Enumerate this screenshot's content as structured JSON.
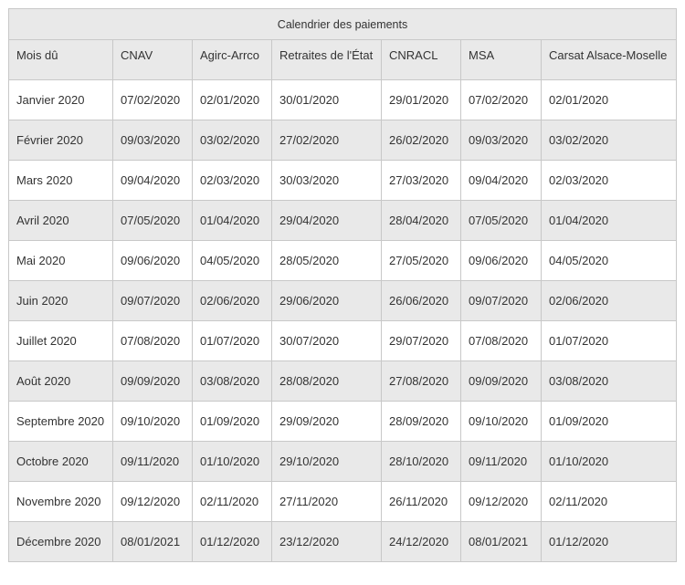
{
  "table": {
    "caption": "Calendrier des paiements",
    "headers": [
      "Mois dû",
      "CNAV",
      "Agirc-Arrco",
      "Retraites de l'État",
      "CNRACL",
      "MSA",
      "Carsat Alsace-Moselle"
    ],
    "rows": [
      [
        "Janvier 2020",
        "07/02/2020",
        "02/01/2020",
        "30/01/2020",
        "29/01/2020",
        "07/02/2020",
        "02/01/2020"
      ],
      [
        "Février 2020",
        "09/03/2020",
        "03/02/2020",
        "27/02/2020",
        "26/02/2020",
        "09/03/2020",
        "03/02/2020"
      ],
      [
        "Mars 2020",
        "09/04/2020",
        "02/03/2020",
        "30/03/2020",
        "27/03/2020",
        "09/04/2020",
        "02/03/2020"
      ],
      [
        "Avril 2020",
        "07/05/2020",
        "01/04/2020",
        "29/04/2020",
        "28/04/2020",
        "07/05/2020",
        "01/04/2020"
      ],
      [
        "Mai 2020",
        "09/06/2020",
        "04/05/2020",
        "28/05/2020",
        "27/05/2020",
        "09/06/2020",
        "04/05/2020"
      ],
      [
        "Juin 2020",
        "09/07/2020",
        "02/06/2020",
        "29/06/2020",
        "26/06/2020",
        "09/07/2020",
        "02/06/2020"
      ],
      [
        "Juillet 2020",
        "07/08/2020",
        "01/07/2020",
        "30/07/2020",
        "29/07/2020",
        "07/08/2020",
        "01/07/2020"
      ],
      [
        "Août 2020",
        "09/09/2020",
        "03/08/2020",
        "28/08/2020",
        "27/08/2020",
        "09/09/2020",
        "03/08/2020"
      ],
      [
        "Septembre 2020",
        "09/10/2020",
        "01/09/2020",
        "29/09/2020",
        "28/09/2020",
        "09/10/2020",
        "01/09/2020"
      ],
      [
        "Octobre 2020",
        "09/11/2020",
        "01/10/2020",
        "29/10/2020",
        "28/10/2020",
        "09/11/2020",
        "01/10/2020"
      ],
      [
        "Novembre 2020",
        "09/12/2020",
        "02/11/2020",
        "27/11/2020",
        "26/11/2020",
        "09/12/2020",
        "02/11/2020"
      ],
      [
        "Décembre 2020",
        "08/01/2021",
        "01/12/2020",
        "23/12/2020",
        "24/12/2020",
        "08/01/2021",
        "01/12/2020"
      ]
    ]
  },
  "colors": {
    "stripe": "#e9e9e9",
    "border": "#c8c8c8",
    "text": "#333333"
  }
}
